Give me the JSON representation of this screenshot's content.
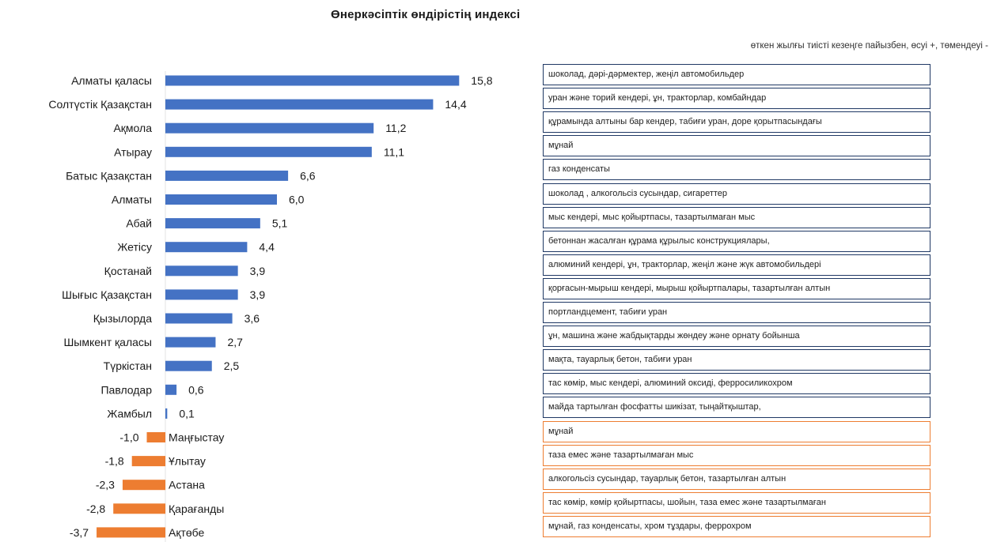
{
  "header": {
    "title": "Өнеркәсіптік өндірістің индексі",
    "subtitle": "өткен жылғы тиісті кезеңге пайызбен, өсуі +, төмендеуі -"
  },
  "colors": {
    "positive": "#4472c4",
    "negative": "#ed7d31",
    "positive_box": "#1f3864",
    "negative_box": "#ed7d31"
  },
  "chart_data": {
    "type": "bar",
    "orientation": "horizontal",
    "title": "Өнеркәсіптік өндірістің индексі",
    "subtitle": "өткен жылғы тиісті кезеңге пайызбен, өсуі +, төмендеуі -",
    "categories": [
      "Алматы қаласы",
      "Солтүстік Қазақстан",
      "Ақмола",
      "Атырау",
      "Батыс Қазақстан",
      "Алматы",
      "Абай",
      "Жетісу",
      "Қостанай",
      "Шығыс Қазақстан",
      "Қызылорда",
      "Шымкент қаласы",
      "Түркістан",
      "Павлодар",
      "Жамбыл",
      "Маңғыстау",
      "Ұлытау",
      "Астана",
      "Қарағанды",
      "Ақтөбе"
    ],
    "values": [
      15.8,
      14.4,
      11.2,
      11.1,
      6.6,
      6.0,
      5.1,
      4.4,
      3.9,
      3.9,
      3.6,
      2.7,
      2.5,
      0.6,
      0.1,
      -1.0,
      -1.8,
      -2.3,
      -2.8,
      -3.7
    ],
    "value_labels": [
      "15,8",
      "14,4",
      "11,2",
      "11,1",
      "6,6",
      "6,0",
      "5,1",
      "4,4",
      "3,9",
      "3,9",
      "3,6",
      "2,7",
      "2,5",
      "0,6",
      "0,1",
      "-1,0",
      "-1,8",
      "-2,3",
      "-2,8",
      "-3,7"
    ],
    "grid": false,
    "legend": "none"
  },
  "descriptions": [
    "шоколад, дәрі-дәрмектер, жеңіл автомобильдер",
    "уран және торий кендері, ұн, тракторлар, комбайндар",
    "құрамында алтыны бар кендер, табиғи уран, доре қорытпасындағы",
    "мұнай",
    "газ конденсаты",
    "шоколад , алкогольсіз сусындар, сигареттер",
    "мыс кендері, мыс қойыртпасы, тазартылмаған мыс",
    "бетоннан жасалған құрама құрылыс конструкциялары,",
    "алюминий кендері, ұн, тракторлар, жеңіл және жүк автомобильдері",
    " қорғасын-мырыш кендері,  мырыш қойыртпалары, тазартылған алтын",
    "портландцемент, табиғи уран",
    "ұн, машина және жабдықтарды жөндеу және орнату бойынша",
    "мақта, тауарлық бетон, табиғи уран",
    "тас көмір, мыс кендері, алюминий оксиді, ферросиликохром",
    "майда тартылған фосфатты шикізат, тыңайтқыштар,",
    "мұнай",
    "таза емес және тазартылмаған мыс",
    "алкогольсіз сусындар, тауарлық бетон, тазартылған алтын",
    "тас көмір, көмір қойыртпасы, шойын, таза емес және тазартылмаған",
    "мұнай, газ конденсаты, хром тұздары, феррохром"
  ]
}
